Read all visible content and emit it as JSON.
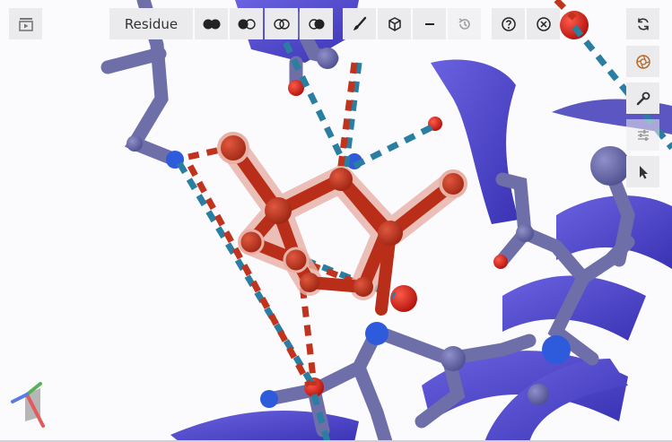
{
  "toolbar": {
    "residue_label": "Residue"
  },
  "colors": {
    "ligand": "#c0341d",
    "ligand_glow": "#e8b1a6",
    "protein_backbone": "#6e6fa8",
    "cartoon": "#4a43c9",
    "nitrogen": "#2d5bdc",
    "oxygen": "#e0211b",
    "hbond": "#2a7ea2",
    "contact": "#c0341d",
    "button_bg": "#ebebed"
  },
  "icons": {
    "sequence": "sequence-panel-icon",
    "rep_ball": "ball-and-stick-icon",
    "rep_half": "half-filled-icon",
    "rep_outline": "outline-spheres-icon",
    "rep_mixed": "mixed-spheres-icon",
    "brush": "brush-icon",
    "cube": "cube-icon",
    "minus": "minus-icon",
    "history": "history-icon",
    "help": "help-icon",
    "close": "close-icon",
    "reset": "reset-camera-icon",
    "screenshot": "camera-aperture-icon",
    "settings": "wrench-icon",
    "controls": "sliders-icon",
    "select": "cursor-icon"
  }
}
